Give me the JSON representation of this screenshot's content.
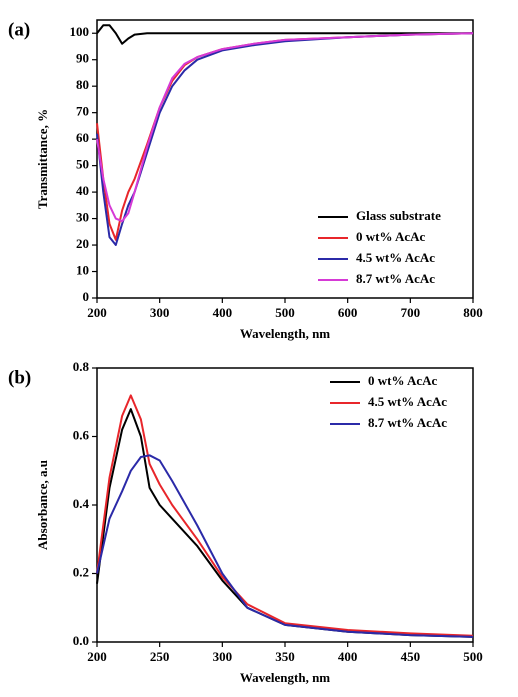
{
  "chart_data": [
    {
      "type": "line",
      "panel_label": "(a)",
      "x_label": "Wavelength, nm",
      "y_label": "Transmittance, %",
      "x": [
        200,
        210,
        220,
        230,
        240,
        250,
        260,
        280,
        300,
        320,
        340,
        360,
        400,
        450,
        500,
        600,
        700,
        800
      ],
      "series": [
        {
          "name": "Glass substrate",
          "color": "#000000",
          "values": [
            100,
            103,
            103,
            100,
            96,
            98,
            99.5,
            100,
            100,
            100,
            100,
            100,
            100,
            100,
            100,
            100,
            100,
            100
          ]
        },
        {
          "name": "0 wt% AcAc",
          "color": "#e8262b",
          "values": [
            66,
            45,
            28,
            22,
            33,
            40,
            45,
            58,
            72,
            82,
            88,
            91,
            94,
            96,
            97.5,
            98.5,
            99.5,
            100
          ]
        },
        {
          "name": "4.5 wt% AcAc",
          "color": "#2b2aa8",
          "values": [
            62,
            40,
            23,
            20,
            28,
            35,
            40,
            55,
            70,
            80,
            86,
            90,
            93.5,
            95.5,
            97,
            98.5,
            99.5,
            100
          ]
        },
        {
          "name": "8.7 wt% AcAc",
          "color": "#d63ad6",
          "values": [
            60,
            45,
            35,
            30,
            29,
            32,
            40,
            57,
            72,
            83,
            88.5,
            91,
            94,
            96,
            97.5,
            98.5,
            99.5,
            100
          ]
        }
      ],
      "xlim": [
        200,
        800
      ],
      "xticks": [
        200,
        300,
        400,
        500,
        600,
        700,
        800
      ],
      "ylim": [
        0,
        105
      ],
      "yticks": [
        0,
        10,
        20,
        30,
        40,
        50,
        60,
        70,
        80,
        90,
        100
      ],
      "legend": "lower right"
    },
    {
      "type": "line",
      "panel_label": "(b)",
      "x_label": "Wavelength, nm",
      "y_label": "Absorbance, a.u",
      "x": [
        200,
        210,
        220,
        227,
        235,
        242,
        250,
        260,
        280,
        300,
        320,
        350,
        400,
        450,
        500
      ],
      "series": [
        {
          "name": "0 wt% AcAc",
          "color": "#000000",
          "values": [
            0.17,
            0.45,
            0.62,
            0.68,
            0.6,
            0.45,
            0.4,
            0.36,
            0.28,
            0.18,
            0.1,
            0.05,
            0.03,
            0.02,
            0.015
          ]
        },
        {
          "name": "4.5 wt% AcAc",
          "color": "#e8262b",
          "values": [
            0.2,
            0.48,
            0.66,
            0.72,
            0.65,
            0.52,
            0.46,
            0.4,
            0.3,
            0.19,
            0.11,
            0.055,
            0.035,
            0.025,
            0.018
          ]
        },
        {
          "name": "8.7 wt% AcAc",
          "color": "#2b2aa8",
          "values": [
            0.2,
            0.36,
            0.44,
            0.5,
            0.54,
            0.545,
            0.53,
            0.47,
            0.34,
            0.2,
            0.1,
            0.05,
            0.03,
            0.02,
            0.015
          ]
        }
      ],
      "xlim": [
        200,
        500
      ],
      "xticks": [
        200,
        250,
        300,
        350,
        400,
        450,
        500
      ],
      "ylim": [
        0,
        0.8
      ],
      "yticks": [
        {
          "value": 0,
          "label": "0.0"
        },
        0.2,
        0.4,
        0.6,
        0.8
      ],
      "legend": "upper right"
    }
  ]
}
